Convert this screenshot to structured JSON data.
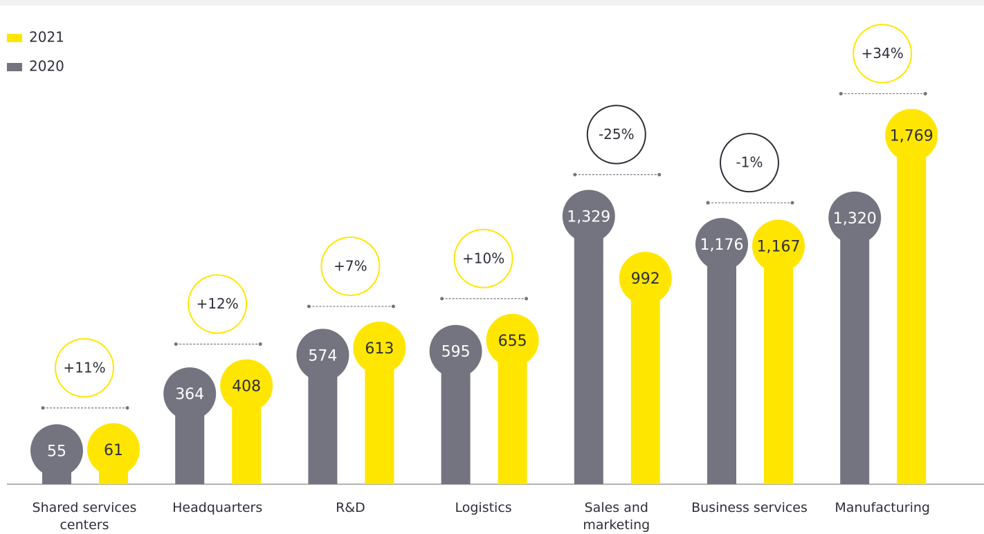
{
  "chart_data": {
    "type": "bar",
    "categories": [
      "Shared services centers",
      "Headquarters",
      "R&D",
      "Logistics",
      "Sales and marketing",
      "Business services",
      "Manufacturing"
    ],
    "series": [
      {
        "name": "2020",
        "color": "#747480",
        "values": [
          55,
          364,
          574,
          595,
          1329,
          1176,
          1320
        ],
        "value_labels": [
          "55",
          "364",
          "574",
          "595",
          "1,329",
          "1,176",
          "1,320"
        ]
      },
      {
        "name": "2021",
        "color": "#ffe600",
        "values": [
          61,
          408,
          613,
          655,
          992,
          1167,
          1769
        ],
        "value_labels": [
          "61",
          "408",
          "613",
          "655",
          "992",
          "1,167",
          "1,769"
        ]
      }
    ],
    "changes": [
      11,
      12,
      7,
      10,
      -25,
      -1,
      34
    ],
    "change_labels": [
      "+11%",
      "+12%",
      "+7%",
      "+10%",
      "-25%",
      "-1%",
      "+34%"
    ],
    "legend": "top-left"
  }
}
